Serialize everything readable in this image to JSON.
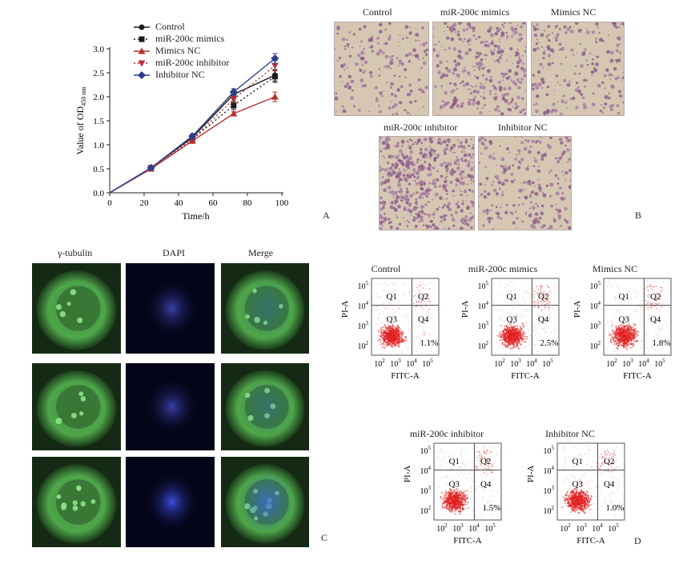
{
  "panel_labels": {
    "a": "A",
    "b": "B",
    "c": "C",
    "d": "D"
  },
  "chart_data": {
    "type": "line",
    "xlabel": "Time/h",
    "ylabel_main": "Value of OD",
    "ylabel_sub": "450 nm",
    "xlim": [
      0,
      100
    ],
    "ylim": [
      0,
      3.0
    ],
    "xticks": [
      "0",
      "20",
      "40",
      "60",
      "80",
      "100"
    ],
    "yticks": [
      "0.0",
      "0.5",
      "1.0",
      "1.5",
      "2.0",
      "2.5",
      "3.0"
    ],
    "legend_position": "top-left",
    "x": [
      0,
      24,
      48,
      72,
      96
    ],
    "series": [
      {
        "name": "Control",
        "color": "#1a1a1a",
        "dash": "",
        "marker": "circle",
        "values": [
          0,
          0.52,
          1.15,
          2.05,
          2.45
        ],
        "err": [
          0,
          0.03,
          0.04,
          0.08,
          0.12
        ]
      },
      {
        "name": "miR-200c mimics",
        "color": "#1a1a1a",
        "dash": "2,3",
        "marker": "square",
        "values": [
          0,
          0.5,
          1.12,
          1.82,
          2.42
        ],
        "err": [
          0,
          0.03,
          0.04,
          0.08,
          0.12
        ]
      },
      {
        "name": "Mimics NC",
        "color": "#b5302f",
        "dash": "",
        "marker": "triangle",
        "values": [
          0,
          0.5,
          1.08,
          1.65,
          2.0
        ],
        "err": [
          0,
          0.03,
          0.04,
          0.05,
          0.1
        ]
      },
      {
        "name": "miR-200c inhibitor",
        "color": "#b5302f",
        "dash": "2,3",
        "marker": "triangle-down",
        "values": [
          0,
          0.52,
          1.12,
          1.95,
          2.65
        ],
        "err": [
          0,
          0.03,
          0.04,
          0.07,
          0.1
        ]
      },
      {
        "name": "Inhibitor NC",
        "color": "#2e3f8c",
        "dash": "",
        "marker": "diamond",
        "values": [
          0,
          0.52,
          1.18,
          2.1,
          2.8
        ],
        "err": [
          0,
          0.03,
          0.05,
          0.07,
          0.1
        ]
      }
    ]
  },
  "transwell": {
    "labels": [
      "Control",
      "miR-200c mimics",
      "Mimics NC",
      "miR-200c inhibitor",
      "Inhibitor NC"
    ],
    "densities": [
      180,
      320,
      200,
      520,
      240
    ]
  },
  "immuno": {
    "headers": [
      "γ-tubulin",
      "DAPI",
      "Merge"
    ]
  },
  "flow": {
    "panels": [
      {
        "title": "Control",
        "percent": "1.1%"
      },
      {
        "title": "miR-200c mimics",
        "percent": "2.5%"
      },
      {
        "title": "Mimics NC",
        "percent": "1.8%"
      },
      {
        "title": "miR-200c inhibitor",
        "percent": "1.5%"
      },
      {
        "title": "Inhibitor NC",
        "percent": "1.0%"
      }
    ],
    "quadrants": [
      "Q1",
      "Q2",
      "Q3",
      "Q4"
    ],
    "xlabel": "FITC-A",
    "ylabel": "PI-A",
    "tick_exponents": [
      "2",
      "3",
      "4",
      "5"
    ]
  }
}
